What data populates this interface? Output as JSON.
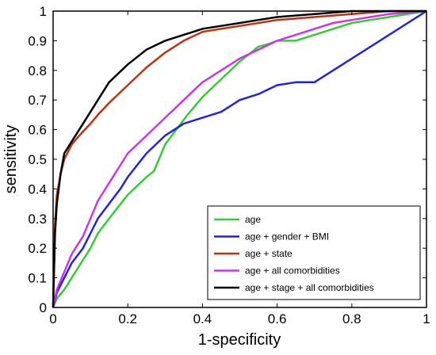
{
  "chart_data": {
    "type": "line",
    "title": "",
    "xlabel": "1-specificity",
    "ylabel": "sensitivity",
    "xlim": [
      0,
      1
    ],
    "ylim": [
      0,
      1
    ],
    "xticks": [
      "0",
      "0.2",
      "0.4",
      "0.6",
      "0.8",
      "1"
    ],
    "yticks": [
      "0",
      "0.1",
      "0.2",
      "0.3",
      "0.4",
      "0.5",
      "0.6",
      "0.7",
      "0.8",
      "0.9",
      "1"
    ],
    "grid": false,
    "legend_position": "bottom-right",
    "series": [
      {
        "name": "age",
        "color": "#33cc33",
        "x": [
          0,
          0.01,
          0.03,
          0.05,
          0.07,
          0.1,
          0.12,
          0.15,
          0.2,
          0.25,
          0.27,
          0.3,
          0.33,
          0.36,
          0.4,
          0.45,
          0.5,
          0.55,
          0.58,
          0.6,
          0.65,
          0.7,
          0.75,
          0.8,
          0.85,
          0.9,
          0.95,
          1.0
        ],
        "y": [
          0,
          0.03,
          0.06,
          0.1,
          0.14,
          0.2,
          0.25,
          0.3,
          0.38,
          0.44,
          0.46,
          0.55,
          0.6,
          0.65,
          0.71,
          0.77,
          0.83,
          0.88,
          0.89,
          0.9,
          0.9,
          0.92,
          0.94,
          0.96,
          0.97,
          0.98,
          0.99,
          1.0
        ]
      },
      {
        "name": "age + gender + BMI",
        "color": "#2222dd",
        "x": [
          0,
          0.01,
          0.03,
          0.05,
          0.08,
          0.1,
          0.12,
          0.15,
          0.18,
          0.2,
          0.25,
          0.3,
          0.35,
          0.4,
          0.45,
          0.5,
          0.55,
          0.6,
          0.65,
          0.7,
          1.0
        ],
        "y": [
          0,
          0.05,
          0.1,
          0.15,
          0.2,
          0.25,
          0.3,
          0.35,
          0.4,
          0.44,
          0.52,
          0.58,
          0.62,
          0.64,
          0.66,
          0.7,
          0.72,
          0.75,
          0.76,
          0.76,
          1.0
        ]
      },
      {
        "name": "age + state",
        "color": "#bb3311",
        "x": [
          0,
          0.005,
          0.01,
          0.02,
          0.03,
          0.05,
          0.07,
          0.1,
          0.12,
          0.15,
          0.2,
          0.25,
          0.3,
          0.35,
          0.4,
          0.45,
          0.5,
          0.55,
          0.6,
          0.7,
          0.8,
          0.9,
          1.0
        ],
        "y": [
          0,
          0.28,
          0.38,
          0.45,
          0.5,
          0.55,
          0.58,
          0.62,
          0.65,
          0.69,
          0.75,
          0.81,
          0.86,
          0.9,
          0.93,
          0.94,
          0.95,
          0.96,
          0.97,
          0.98,
          0.99,
          1.0,
          1.0
        ]
      },
      {
        "name": "age + all comorbidities",
        "color": "#cc33ee",
        "x": [
          0,
          0.01,
          0.03,
          0.05,
          0.08,
          0.1,
          0.12,
          0.15,
          0.18,
          0.2,
          0.25,
          0.3,
          0.35,
          0.4,
          0.45,
          0.5,
          0.55,
          0.6,
          0.65,
          0.7,
          0.75,
          0.8,
          0.85,
          0.9,
          1.0
        ],
        "y": [
          0,
          0.06,
          0.12,
          0.18,
          0.24,
          0.3,
          0.36,
          0.42,
          0.48,
          0.52,
          0.58,
          0.64,
          0.7,
          0.76,
          0.8,
          0.84,
          0.87,
          0.9,
          0.92,
          0.94,
          0.96,
          0.97,
          0.98,
          0.99,
          1.0
        ]
      },
      {
        "name": "age + stage + all comorbidities",
        "color": "#000000",
        "x": [
          0,
          0.005,
          0.01,
          0.02,
          0.03,
          0.05,
          0.07,
          0.1,
          0.12,
          0.15,
          0.2,
          0.25,
          0.3,
          0.35,
          0.4,
          0.45,
          0.5,
          0.55,
          0.6,
          0.7,
          0.8,
          0.9,
          1.0
        ],
        "y": [
          0,
          0.25,
          0.35,
          0.45,
          0.52,
          0.56,
          0.6,
          0.66,
          0.7,
          0.76,
          0.82,
          0.87,
          0.9,
          0.92,
          0.94,
          0.95,
          0.96,
          0.97,
          0.98,
          0.99,
          1.0,
          1.0,
          1.0
        ]
      }
    ]
  }
}
